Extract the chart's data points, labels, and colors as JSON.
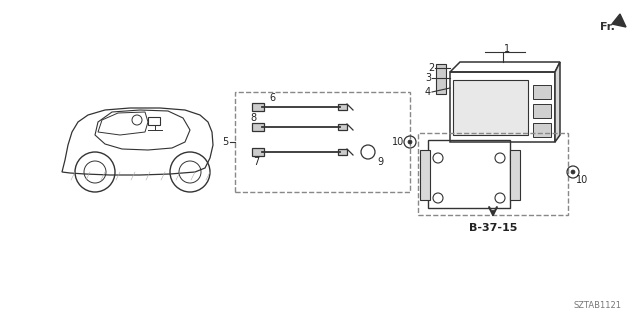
{
  "bg_color": "#ffffff",
  "line_color": "#333333",
  "dashed_color": "#888888",
  "text_color": "#222222",
  "figure_code": "SZTAB1121",
  "ref_label": "B-37-15",
  "fr_label": "Fr.",
  "figsize": [
    6.4,
    3.2
  ],
  "dpi": 100
}
